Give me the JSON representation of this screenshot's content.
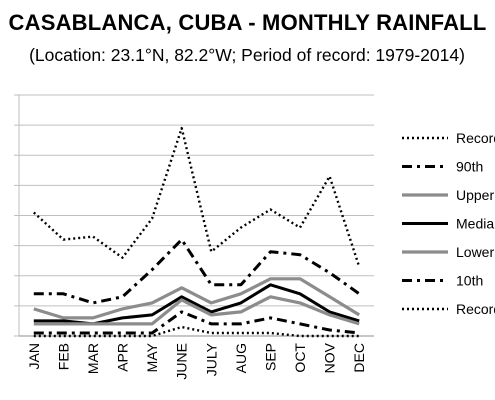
{
  "chart_data": {
    "type": "line",
    "title": "CASABLANCA, CUBA - MONTHLY RAINFALL",
    "subtitle": "(Location: 23.1°N, 82.2°W; Period of record: 1979-2014)",
    "xlabel": "",
    "ylabel": "",
    "grid": true,
    "legend_position": "right",
    "categories": [
      "JAN",
      "FEB",
      "MAR",
      "APR",
      "MAY",
      "JUNE",
      "JULY",
      "AUG",
      "SEP",
      "OCT",
      "NOV",
      "DEC"
    ],
    "ylim": [
      0,
      8
    ],
    "series": [
      {
        "name": "Record",
        "style": "dotted",
        "color": "#000000",
        "values": [
          4.1,
          3.2,
          3.3,
          2.6,
          3.9,
          6.9,
          2.8,
          3.6,
          4.2,
          3.6,
          5.3,
          2.3
        ]
      },
      {
        "name": "90th",
        "style": "dashdot",
        "color": "#000000",
        "values": [
          1.4,
          1.4,
          1.1,
          1.3,
          2.2,
          3.2,
          1.7,
          1.7,
          2.8,
          2.7,
          2.1,
          1.4
        ]
      },
      {
        "name": "Upper",
        "style": "solid",
        "color": "#8c8c8c",
        "values": [
          0.9,
          0.6,
          0.6,
          0.9,
          1.1,
          1.6,
          1.1,
          1.4,
          1.9,
          1.9,
          1.3,
          0.7
        ]
      },
      {
        "name": "Median",
        "style": "solid",
        "color": "#000000",
        "values": [
          0.5,
          0.5,
          0.4,
          0.6,
          0.7,
          1.3,
          0.8,
          1.1,
          1.7,
          1.4,
          0.8,
          0.5
        ]
      },
      {
        "name": "Lower",
        "style": "solid",
        "color": "#8c8c8c",
        "values": [
          0.4,
          0.4,
          0.4,
          0.4,
          0.4,
          1.2,
          0.7,
          0.8,
          1.3,
          1.1,
          0.7,
          0.4
        ]
      },
      {
        "name": "10th",
        "style": "dashdot",
        "color": "#000000",
        "values": [
          0.1,
          0.1,
          0.1,
          0.1,
          0.1,
          0.8,
          0.4,
          0.4,
          0.6,
          0.4,
          0.2,
          0.1
        ]
      },
      {
        "name": "Record",
        "style": "dotted",
        "color": "#000000",
        "values": [
          0.0,
          0.0,
          0.0,
          0.0,
          0.0,
          0.3,
          0.1,
          0.1,
          0.1,
          0.0,
          0.0,
          0.0
        ]
      }
    ]
  }
}
